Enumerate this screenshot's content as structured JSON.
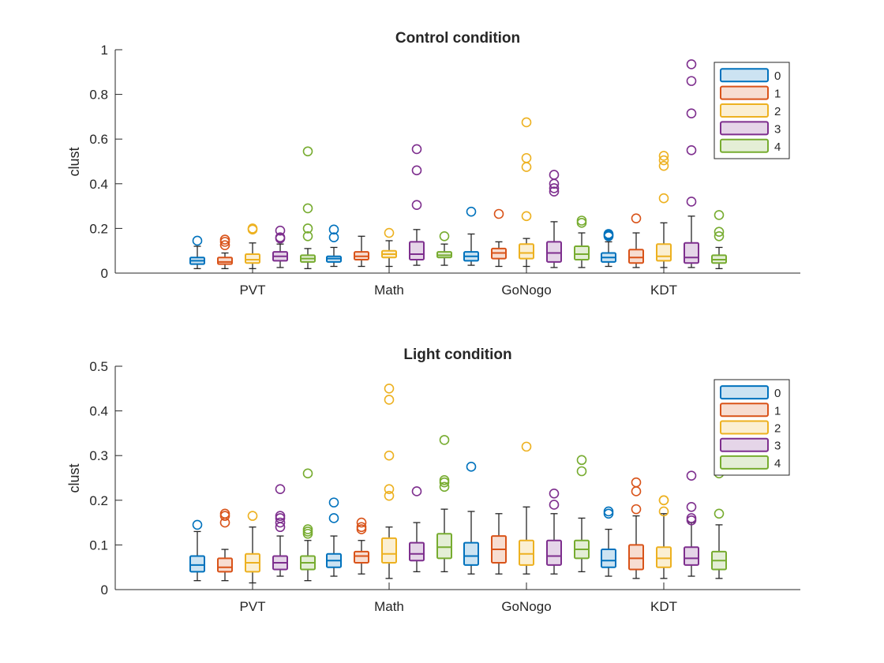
{
  "chart_data": [
    {
      "type": "box",
      "title": "Control condition",
      "ylabel": "clust",
      "xlabel": "",
      "ylim": [
        0,
        1
      ],
      "yticks": [
        0,
        0.2,
        0.4,
        0.6,
        0.8,
        1
      ],
      "yticklabels": [
        "0",
        "0.2",
        "0.4",
        "0.6",
        "0.8",
        "1"
      ],
      "grid": false,
      "legend_position": "top-right",
      "categories": [
        "PVT",
        "Math",
        "GoNogo",
        "KDT"
      ],
      "series": [
        {
          "name": "0",
          "color": "#0072BD",
          "boxes": [
            {
              "category": "PVT",
              "whisker_low": 0.02,
              "q1": 0.04,
              "median": 0.055,
              "q3": 0.07,
              "whisker_high": 0.12,
              "outliers": [
                0.145
              ]
            },
            {
              "category": "Math",
              "whisker_low": 0.03,
              "q1": 0.05,
              "median": 0.065,
              "q3": 0.075,
              "whisker_high": 0.115,
              "outliers": [
                0.16,
                0.195
              ]
            },
            {
              "category": "GoNogo",
              "whisker_low": 0.035,
              "q1": 0.055,
              "median": 0.075,
              "q3": 0.095,
              "whisker_high": 0.175,
              "outliers": [
                0.275
              ]
            },
            {
              "category": "KDT",
              "whisker_low": 0.03,
              "q1": 0.05,
              "median": 0.07,
              "q3": 0.09,
              "whisker_high": 0.14,
              "outliers": [
                0.165,
                0.17,
                0.175
              ]
            }
          ]
        },
        {
          "name": "1",
          "color": "#D95319",
          "boxes": [
            {
              "category": "PVT",
              "whisker_low": 0.02,
              "q1": 0.04,
              "median": 0.05,
              "q3": 0.07,
              "whisker_high": 0.09,
              "outliers": [
                0.125,
                0.14,
                0.15
              ]
            },
            {
              "category": "Math",
              "whisker_low": 0.03,
              "q1": 0.06,
              "median": 0.075,
              "q3": 0.095,
              "whisker_high": 0.165,
              "outliers": []
            },
            {
              "category": "GoNogo",
              "whisker_low": 0.03,
              "q1": 0.065,
              "median": 0.09,
              "q3": 0.11,
              "whisker_high": 0.14,
              "outliers": [
                0.265
              ]
            },
            {
              "category": "KDT",
              "whisker_low": 0.025,
              "q1": 0.045,
              "median": 0.07,
              "q3": 0.105,
              "whisker_high": 0.18,
              "outliers": [
                0.245
              ]
            }
          ]
        },
        {
          "name": "2",
          "color": "#EDB120",
          "boxes": [
            {
              "category": "PVT",
              "whisker_low": 0.02,
              "q1": 0.045,
              "median": 0.06,
              "q3": 0.085,
              "whisker_high": 0.135,
              "outliers": [
                0.195,
                0.2
              ]
            },
            {
              "category": "Math",
              "whisker_low": 0.03,
              "q1": 0.07,
              "median": 0.085,
              "q3": 0.1,
              "whisker_high": 0.145,
              "outliers": [
                0.18
              ]
            },
            {
              "category": "GoNogo",
              "whisker_low": 0.03,
              "q1": 0.065,
              "median": 0.09,
              "q3": 0.13,
              "whisker_high": 0.155,
              "outliers": [
                0.255,
                0.475,
                0.515,
                0.675
              ]
            },
            {
              "category": "KDT",
              "whisker_low": 0.025,
              "q1": 0.055,
              "median": 0.075,
              "q3": 0.13,
              "whisker_high": 0.225,
              "outliers": [
                0.335,
                0.48,
                0.505,
                0.525
              ]
            }
          ]
        },
        {
          "name": "3",
          "color": "#7E2F8E",
          "boxes": [
            {
              "category": "PVT",
              "whisker_low": 0.025,
              "q1": 0.055,
              "median": 0.075,
              "q3": 0.095,
              "whisker_high": 0.13,
              "outliers": [
                0.155,
                0.16,
                0.19
              ]
            },
            {
              "category": "Math",
              "whisker_low": 0.035,
              "q1": 0.06,
              "median": 0.085,
              "q3": 0.14,
              "whisker_high": 0.195,
              "outliers": [
                0.305,
                0.46,
                0.555
              ]
            },
            {
              "category": "GoNogo",
              "whisker_low": 0.025,
              "q1": 0.05,
              "median": 0.09,
              "q3": 0.14,
              "whisker_high": 0.23,
              "outliers": [
                0.365,
                0.38,
                0.4,
                0.44
              ]
            },
            {
              "category": "KDT",
              "whisker_low": 0.025,
              "q1": 0.045,
              "median": 0.07,
              "q3": 0.135,
              "whisker_high": 0.255,
              "outliers": [
                0.32,
                0.55,
                0.715,
                0.86,
                0.935
              ]
            }
          ]
        },
        {
          "name": "4",
          "color": "#77AC30",
          "boxes": [
            {
              "category": "PVT",
              "whisker_low": 0.02,
              "q1": 0.05,
              "median": 0.065,
              "q3": 0.08,
              "whisker_high": 0.11,
              "outliers": [
                0.165,
                0.2,
                0.29,
                0.545
              ]
            },
            {
              "category": "Math",
              "whisker_low": 0.035,
              "q1": 0.07,
              "median": 0.08,
              "q3": 0.095,
              "whisker_high": 0.13,
              "outliers": [
                0.165
              ]
            },
            {
              "category": "GoNogo",
              "whisker_low": 0.025,
              "q1": 0.06,
              "median": 0.085,
              "q3": 0.12,
              "whisker_high": 0.18,
              "outliers": [
                0.225,
                0.235
              ]
            },
            {
              "category": "KDT",
              "whisker_low": 0.02,
              "q1": 0.045,
              "median": 0.06,
              "q3": 0.08,
              "whisker_high": 0.115,
              "outliers": [
                0.165,
                0.185,
                0.26
              ]
            }
          ]
        }
      ]
    },
    {
      "type": "box",
      "title": "Light condition",
      "ylabel": "clust",
      "xlabel": "",
      "ylim": [
        0,
        0.5
      ],
      "yticks": [
        0,
        0.1,
        0.2,
        0.3,
        0.4,
        0.5
      ],
      "yticklabels": [
        "0",
        "0.1",
        "0.2",
        "0.3",
        "0.4",
        "0.5"
      ],
      "grid": false,
      "legend_position": "top-right",
      "categories": [
        "PVT",
        "Math",
        "GoNogo",
        "KDT"
      ],
      "series": [
        {
          "name": "0",
          "color": "#0072BD",
          "boxes": [
            {
              "category": "PVT",
              "whisker_low": 0.02,
              "q1": 0.04,
              "median": 0.055,
              "q3": 0.075,
              "whisker_high": 0.13,
              "outliers": [
                0.145
              ]
            },
            {
              "category": "Math",
              "whisker_low": 0.03,
              "q1": 0.05,
              "median": 0.065,
              "q3": 0.08,
              "whisker_high": 0.12,
              "outliers": [
                0.16,
                0.195
              ]
            },
            {
              "category": "GoNogo",
              "whisker_low": 0.035,
              "q1": 0.055,
              "median": 0.075,
              "q3": 0.105,
              "whisker_high": 0.175,
              "outliers": [
                0.275
              ]
            },
            {
              "category": "KDT",
              "whisker_low": 0.03,
              "q1": 0.05,
              "median": 0.065,
              "q3": 0.09,
              "whisker_high": 0.135,
              "outliers": [
                0.17,
                0.175
              ]
            }
          ]
        },
        {
          "name": "1",
          "color": "#D95319",
          "boxes": [
            {
              "category": "PVT",
              "whisker_low": 0.02,
              "q1": 0.04,
              "median": 0.05,
              "q3": 0.07,
              "whisker_high": 0.09,
              "outliers": [
                0.15,
                0.165,
                0.17
              ]
            },
            {
              "category": "Math",
              "whisker_low": 0.035,
              "q1": 0.06,
              "median": 0.075,
              "q3": 0.085,
              "whisker_high": 0.11,
              "outliers": [
                0.135,
                0.14,
                0.15
              ]
            },
            {
              "category": "GoNogo",
              "whisker_low": 0.035,
              "q1": 0.06,
              "median": 0.09,
              "q3": 0.12,
              "whisker_high": 0.17,
              "outliers": []
            },
            {
              "category": "KDT",
              "whisker_low": 0.025,
              "q1": 0.045,
              "median": 0.07,
              "q3": 0.1,
              "whisker_high": 0.165,
              "outliers": [
                0.18,
                0.22,
                0.24
              ]
            }
          ]
        },
        {
          "name": "2",
          "color": "#EDB120",
          "boxes": [
            {
              "category": "PVT",
              "whisker_low": 0.015,
              "q1": 0.04,
              "median": 0.06,
              "q3": 0.08,
              "whisker_high": 0.14,
              "outliers": [
                0.165
              ]
            },
            {
              "category": "Math",
              "whisker_low": 0.025,
              "q1": 0.06,
              "median": 0.08,
              "q3": 0.115,
              "whisker_high": 0.14,
              "outliers": [
                0.21,
                0.225,
                0.3,
                0.425,
                0.45
              ]
            },
            {
              "category": "GoNogo",
              "whisker_low": 0.035,
              "q1": 0.055,
              "median": 0.08,
              "q3": 0.11,
              "whisker_high": 0.185,
              "outliers": [
                0.32
              ]
            },
            {
              "category": "KDT",
              "whisker_low": 0.025,
              "q1": 0.05,
              "median": 0.07,
              "q3": 0.095,
              "whisker_high": 0.17,
              "outliers": [
                0.175,
                0.2,
                0.2
              ]
            }
          ]
        },
        {
          "name": "3",
          "color": "#7E2F8E",
          "boxes": [
            {
              "category": "PVT",
              "whisker_low": 0.03,
              "q1": 0.045,
              "median": 0.06,
              "q3": 0.075,
              "whisker_high": 0.12,
              "outliers": [
                0.14,
                0.15,
                0.16,
                0.165,
                0.225
              ]
            },
            {
              "category": "Math",
              "whisker_low": 0.04,
              "q1": 0.065,
              "median": 0.08,
              "q3": 0.105,
              "whisker_high": 0.15,
              "outliers": [
                0.22
              ]
            },
            {
              "category": "GoNogo",
              "whisker_low": 0.035,
              "q1": 0.055,
              "median": 0.075,
              "q3": 0.11,
              "whisker_high": 0.17,
              "outliers": [
                0.19,
                0.215
              ]
            },
            {
              "category": "KDT",
              "whisker_low": 0.03,
              "q1": 0.055,
              "median": 0.07,
              "q3": 0.095,
              "whisker_high": 0.15,
              "outliers": [
                0.155,
                0.16,
                0.185,
                0.255
              ]
            }
          ]
        },
        {
          "name": "4",
          "color": "#77AC30",
          "boxes": [
            {
              "category": "PVT",
              "whisker_low": 0.02,
              "q1": 0.045,
              "median": 0.06,
              "q3": 0.075,
              "whisker_high": 0.11,
              "outliers": [
                0.125,
                0.13,
                0.135,
                0.26
              ]
            },
            {
              "category": "Math",
              "whisker_low": 0.04,
              "q1": 0.07,
              "median": 0.095,
              "q3": 0.125,
              "whisker_high": 0.18,
              "outliers": [
                0.23,
                0.24,
                0.245,
                0.335
              ]
            },
            {
              "category": "GoNogo",
              "whisker_low": 0.04,
              "q1": 0.07,
              "median": 0.09,
              "q3": 0.11,
              "whisker_high": 0.16,
              "outliers": [
                0.265,
                0.29
              ]
            },
            {
              "category": "KDT",
              "whisker_low": 0.025,
              "q1": 0.045,
              "median": 0.065,
              "q3": 0.085,
              "whisker_high": 0.145,
              "outliers": [
                0.17,
                0.26
              ]
            }
          ]
        }
      ]
    }
  ]
}
